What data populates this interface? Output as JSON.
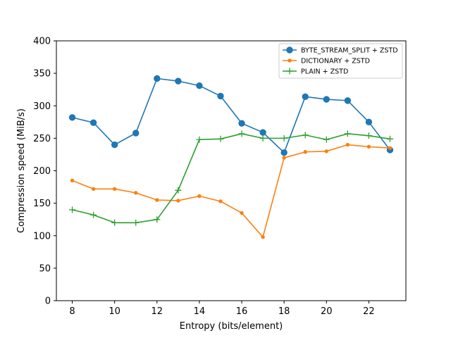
{
  "chart_data": {
    "type": "line",
    "title": "",
    "xlabel": "Entropy (bits/element)",
    "ylabel": "Compression speed (MiB/s)",
    "x": [
      8,
      9,
      10,
      11,
      12,
      13,
      14,
      15,
      16,
      17,
      18,
      19,
      20,
      21,
      22,
      23
    ],
    "xlim": [
      7.25,
      23.75
    ],
    "ylim": [
      0,
      400
    ],
    "xticks": [
      8,
      10,
      12,
      14,
      16,
      18,
      20,
      22
    ],
    "yticks": [
      0,
      50,
      100,
      150,
      200,
      250,
      300,
      350,
      400
    ],
    "grid": false,
    "legend_position": "top-right",
    "series": [
      {
        "name": "BYTE_STREAM_SPLIT + ZSTD",
        "color": "#1f77b4",
        "marker": "circle",
        "values": [
          282,
          274,
          240,
          258,
          342,
          338,
          331,
          315,
          273,
          259,
          228,
          314,
          310,
          308,
          275,
          232
        ]
      },
      {
        "name": "DICTIONARY + ZSTD",
        "color": "#ff7f0e",
        "marker": "dot",
        "values": [
          185,
          172,
          172,
          166,
          155,
          154,
          161,
          153,
          135,
          98,
          220,
          229,
          230,
          240,
          237,
          235
        ]
      },
      {
        "name": "PLAIN + ZSTD",
        "color": "#2ca02c",
        "marker": "plus",
        "values": [
          140,
          132,
          120,
          120,
          125,
          170,
          248,
          249,
          257,
          250,
          250,
          255,
          248,
          257,
          254,
          249
        ]
      }
    ]
  }
}
